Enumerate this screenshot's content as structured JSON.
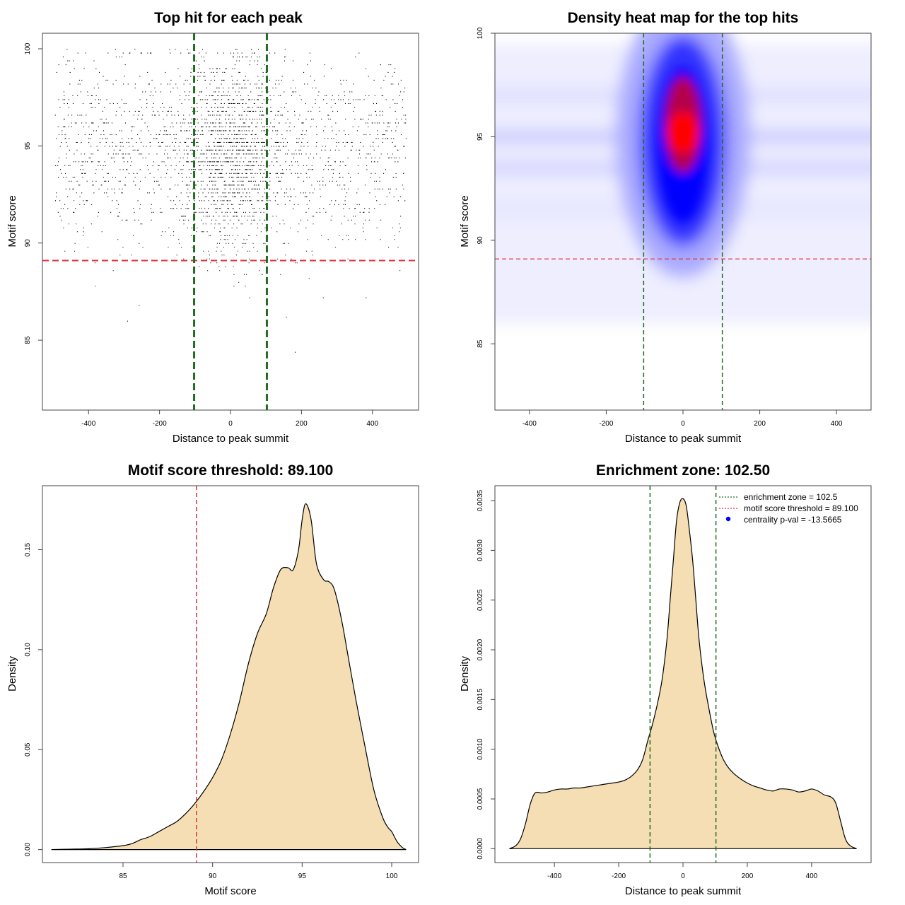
{
  "colors": {
    "enrichment": "#1f6b1f",
    "threshold": "#e0313a",
    "fill": "#f5deb3",
    "heat_low": "#ffffff",
    "heat_mid": "#0000ff",
    "heat_high": "#ff0000",
    "point": "#000000"
  },
  "chart_data": [
    {
      "type": "scatter",
      "title": "Top hit for each peak",
      "xlabel": "Distance to peak summit",
      "ylabel": "Motif score",
      "xlim": [
        -530,
        530
      ],
      "ylim": [
        81.4,
        100.8
      ],
      "xticks": [
        -400,
        -200,
        0,
        200,
        400
      ],
      "yticks": [
        85,
        90,
        95,
        100
      ],
      "threshold_y": 89.1,
      "enrichment_x": [
        -102.5,
        102.5
      ],
      "points": "dense cloud of ~40000 top hits, x in [-490,490], y in [82,100], concentrated near x=0"
    },
    {
      "type": "heatmap",
      "title": "Density heat map for the top hits",
      "xlabel": "Distance to peak summit",
      "ylabel": "Motif score",
      "xlim": [
        -490,
        490
      ],
      "ylim": [
        81.8,
        100
      ],
      "xticks": [
        -400,
        -200,
        0,
        200,
        400
      ],
      "yticks": [
        85,
        90,
        95,
        100
      ],
      "threshold_y": 89.1,
      "enrichment_x": [
        -102.5,
        102.5
      ],
      "peak": {
        "x": 0,
        "y": 95.2
      }
    },
    {
      "type": "area",
      "title": "Motif score threshold: 89.100",
      "xlabel": "Motif score",
      "ylabel": "Density",
      "xlim": [
        80.5,
        101.5
      ],
      "ylim": [
        -0.0065,
        0.182
      ],
      "xticks": [
        85,
        90,
        95,
        100
      ],
      "yticks": [
        0.0,
        0.05,
        0.1,
        0.15
      ],
      "ytick_labels": [
        "0.00",
        "0.05",
        "0.10",
        "0.15"
      ],
      "threshold_x": 89.1,
      "x": [
        81,
        82,
        83,
        84,
        85,
        85.5,
        86,
        86.5,
        87,
        87.5,
        88,
        88.5,
        89,
        89.5,
        90,
        90.5,
        91,
        91.5,
        92,
        92.5,
        93,
        93.4,
        93.8,
        94.2,
        94.5,
        94.8,
        95,
        95.2,
        95.5,
        95.8,
        96.2,
        96.5,
        96.8,
        97.2,
        97.6,
        98,
        98.5,
        99,
        99.5,
        99.8,
        100,
        100.3,
        100.6,
        100.8
      ],
      "y": [
        0,
        0.0002,
        0.0004,
        0.001,
        0.002,
        0.003,
        0.005,
        0.0065,
        0.009,
        0.0115,
        0.014,
        0.018,
        0.023,
        0.029,
        0.036,
        0.045,
        0.058,
        0.074,
        0.093,
        0.108,
        0.118,
        0.131,
        0.14,
        0.141,
        0.14,
        0.15,
        0.165,
        0.173,
        0.165,
        0.143,
        0.135,
        0.134,
        0.13,
        0.115,
        0.095,
        0.075,
        0.052,
        0.03,
        0.016,
        0.011,
        0.009,
        0.004,
        0.001,
        0
      ]
    },
    {
      "type": "area",
      "title": "Enrichment zone: 102.50",
      "xlabel": "Distance to peak summit",
      "ylabel": "Density",
      "xlim": [
        -585,
        585
      ],
      "ylim": [
        -0.00014,
        0.00365
      ],
      "xticks": [
        -400,
        -200,
        0,
        200,
        400
      ],
      "yticks": [
        0,
        0.0005,
        0.001,
        0.0015,
        0.002,
        0.0025,
        0.003,
        0.0035
      ],
      "ytick_labels": [
        "0.0000",
        "0.0005",
        "0.0010",
        "0.0015",
        "0.0020",
        "0.0025",
        "0.0030",
        "0.0035"
      ],
      "enrichment_x": [
        -102.5,
        102.5
      ],
      "x": [
        -540,
        -520,
        -505,
        -490,
        -475,
        -460,
        -440,
        -420,
        -400,
        -380,
        -360,
        -340,
        -320,
        -300,
        -280,
        -260,
        -240,
        -220,
        -200,
        -180,
        -160,
        -140,
        -125,
        -110,
        -95,
        -80,
        -65,
        -50,
        -40,
        -30,
        -20,
        -10,
        0,
        10,
        20,
        30,
        40,
        50,
        65,
        80,
        95,
        110,
        125,
        140,
        160,
        180,
        200,
        220,
        240,
        260,
        280,
        300,
        320,
        340,
        360,
        380,
        400,
        420,
        440,
        460,
        475,
        490,
        505,
        520,
        540
      ],
      "y": [
        0,
        3e-05,
        0.0001,
        0.00025,
        0.00045,
        0.00056,
        0.00056,
        0.00057,
        0.00059,
        0.0006,
        0.0006,
        0.00061,
        0.00061,
        0.00062,
        0.00063,
        0.00064,
        0.00065,
        0.00066,
        0.00067,
        0.00069,
        0.00073,
        0.0008,
        0.0009,
        0.00108,
        0.00125,
        0.00145,
        0.0017,
        0.0021,
        0.0025,
        0.0029,
        0.0033,
        0.00348,
        0.00352,
        0.00345,
        0.0032,
        0.0029,
        0.0025,
        0.0021,
        0.0017,
        0.00142,
        0.00118,
        0.00102,
        0.0009,
        0.00082,
        0.00075,
        0.0007,
        0.00066,
        0.00063,
        0.00061,
        0.00059,
        0.00058,
        0.0006,
        0.0006,
        0.00059,
        0.00057,
        0.00058,
        0.0006,
        0.00058,
        0.00054,
        0.00052,
        0.00046,
        0.00028,
        0.0001,
        3e-05,
        0
      ],
      "legend": [
        {
          "label": "enrichment zone = 102.5",
          "style": "dotted-green"
        },
        {
          "label": "motif score threshold = 89.100",
          "style": "dotted-red"
        },
        {
          "label": "centrality p-val = -13.5665",
          "style": "blue-dot"
        }
      ]
    }
  ]
}
